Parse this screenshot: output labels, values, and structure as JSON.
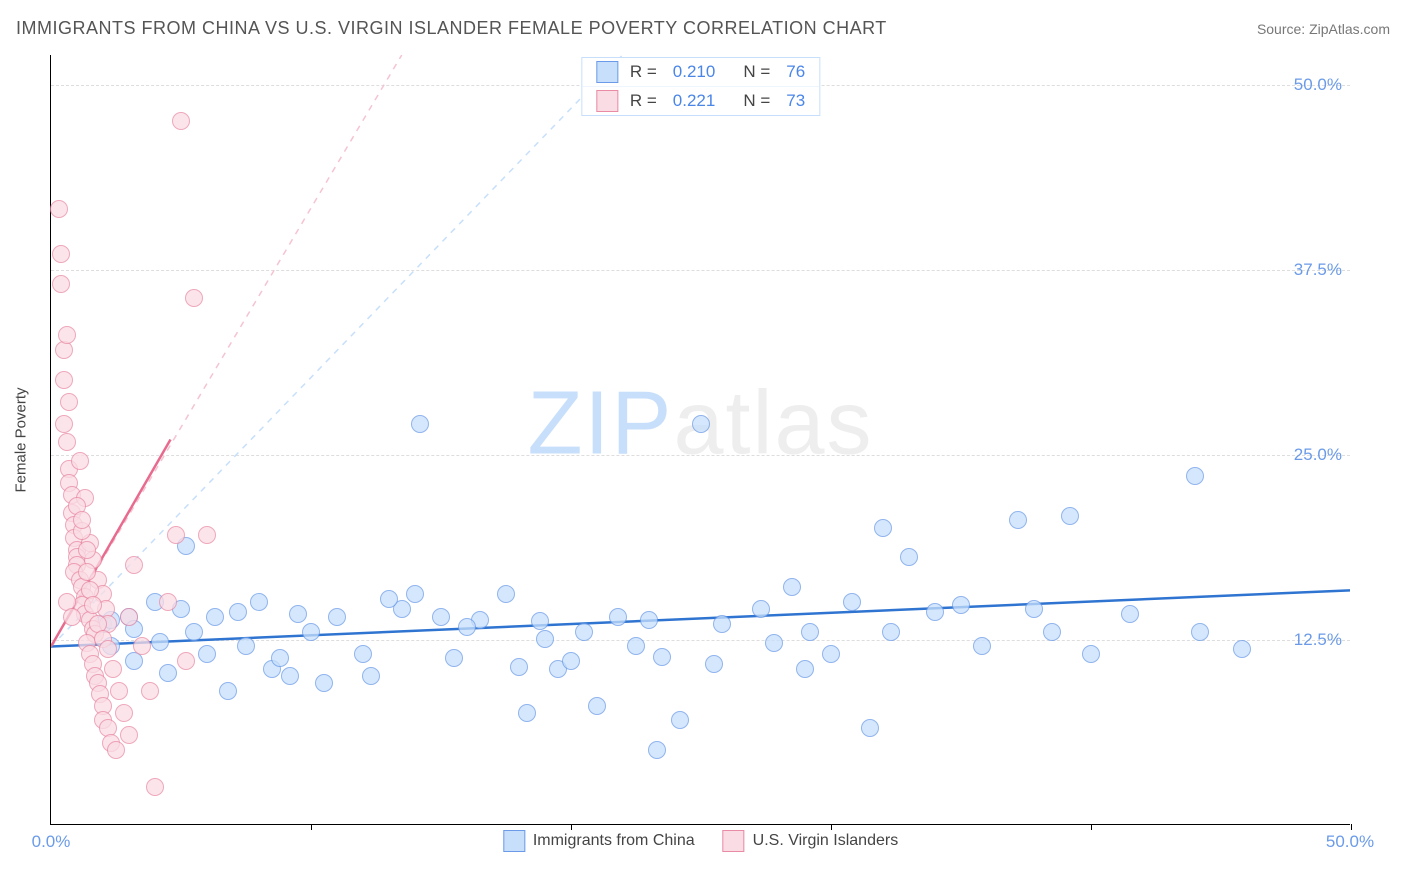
{
  "header": {
    "title": "IMMIGRANTS FROM CHINA VS U.S. VIRGIN ISLANDER FEMALE POVERTY CORRELATION CHART",
    "source_label": "Source:",
    "source_name": "ZipAtlas.com"
  },
  "watermark": {
    "part1": "ZIP",
    "part2": "atlas"
  },
  "chart": {
    "type": "scatter",
    "background_color": "#ffffff",
    "grid_color": "#dddddd",
    "axis_color": "#000000",
    "xlim": [
      0,
      50
    ],
    "ylim": [
      0,
      52
    ],
    "y_ticks": [
      12.5,
      25.0,
      37.5,
      50.0
    ],
    "y_tick_labels": [
      "12.5%",
      "25.0%",
      "37.5%",
      "50.0%"
    ],
    "x_origin_label": "0.0%",
    "x_max_label": "50.0%",
    "x_tick_positions": [
      10,
      20,
      30,
      40,
      50
    ],
    "y_axis_label": "Female Poverty",
    "y_tick_color": "#6b9be8",
    "x_tick_color": "#6b9be8",
    "marker_radius": 9,
    "marker_stroke_width": 1.2,
    "series": [
      {
        "name": "Immigrants from China",
        "fill_color": "#c7dffb",
        "stroke_color": "#6b9be8",
        "fill_opacity": 0.75,
        "trend": {
          "solid_color": "#2f74d0",
          "dash_color": "#c7dffb",
          "x1": 0,
          "y1": 12.0,
          "x2": 50,
          "y2": 15.8,
          "dash_x1": 0,
          "dash_y1": 12.0,
          "dash_x2": 22,
          "dash_y2": 52
        },
        "stats": {
          "R": "0.210",
          "N": "76"
        },
        "points": [
          [
            2.0,
            13.5
          ],
          [
            2.3,
            12.0
          ],
          [
            2.3,
            13.8
          ],
          [
            3.0,
            14.0
          ],
          [
            3.2,
            11.0
          ],
          [
            3.2,
            13.2
          ],
          [
            4.0,
            15.0
          ],
          [
            4.2,
            12.3
          ],
          [
            4.5,
            10.2
          ],
          [
            5.0,
            14.5
          ],
          [
            5.2,
            18.8
          ],
          [
            5.5,
            13.0
          ],
          [
            6.0,
            11.5
          ],
          [
            6.3,
            14.0
          ],
          [
            6.8,
            9.0
          ],
          [
            7.2,
            14.3
          ],
          [
            7.5,
            12.0
          ],
          [
            8.0,
            15.0
          ],
          [
            8.5,
            10.5
          ],
          [
            8.8,
            11.2
          ],
          [
            9.2,
            10.0
          ],
          [
            9.5,
            14.2
          ],
          [
            10.5,
            9.5
          ],
          [
            11.0,
            14.0
          ],
          [
            12.0,
            11.5
          ],
          [
            12.3,
            10.0
          ],
          [
            13.5,
            14.5
          ],
          [
            14.0,
            15.5
          ],
          [
            14.2,
            27.0
          ],
          [
            15.5,
            11.2
          ],
          [
            16.5,
            13.8
          ],
          [
            17.5,
            15.5
          ],
          [
            18.0,
            10.6
          ],
          [
            18.3,
            7.5
          ],
          [
            18.8,
            13.7
          ],
          [
            19.5,
            10.5
          ],
          [
            20.0,
            11.0
          ],
          [
            21.0,
            8.0
          ],
          [
            21.8,
            14.0
          ],
          [
            22.5,
            12.0
          ],
          [
            23.0,
            13.8
          ],
          [
            23.3,
            5.0
          ],
          [
            23.5,
            11.3
          ],
          [
            24.2,
            7.0
          ],
          [
            25.0,
            27.0
          ],
          [
            25.8,
            13.5
          ],
          [
            27.3,
            14.5
          ],
          [
            27.8,
            12.2
          ],
          [
            28.5,
            16.0
          ],
          [
            29.2,
            13.0
          ],
          [
            30.0,
            11.5
          ],
          [
            30.8,
            15.0
          ],
          [
            31.5,
            6.5
          ],
          [
            32.0,
            20.0
          ],
          [
            32.3,
            13.0
          ],
          [
            33.0,
            18.0
          ],
          [
            34.0,
            14.3
          ],
          [
            35.0,
            14.8
          ],
          [
            35.8,
            12.0
          ],
          [
            37.2,
            20.5
          ],
          [
            37.8,
            14.5
          ],
          [
            38.5,
            13.0
          ],
          [
            39.2,
            20.8
          ],
          [
            40.0,
            11.5
          ],
          [
            41.5,
            14.2
          ],
          [
            44.0,
            23.5
          ],
          [
            44.2,
            13.0
          ],
          [
            45.8,
            11.8
          ],
          [
            25.5,
            10.8
          ],
          [
            19.0,
            12.5
          ],
          [
            15.0,
            14.0
          ],
          [
            10.0,
            13.0
          ],
          [
            13.0,
            15.2
          ],
          [
            16.0,
            13.3
          ],
          [
            20.5,
            13.0
          ],
          [
            29.0,
            10.5
          ]
        ]
      },
      {
        "name": "U.S. Virgin Islanders",
        "fill_color": "#fadce4",
        "stroke_color": "#e98ba5",
        "fill_opacity": 0.75,
        "trend": {
          "solid_color": "#e86b8f",
          "dash_color": "#f5c3d1",
          "x1": 0,
          "y1": 12.0,
          "x2": 4.6,
          "y2": 26.0,
          "dash_x1": 0,
          "dash_y1": 12.0,
          "dash_x2": 13.5,
          "dash_y2": 52
        },
        "stats": {
          "R": "0.221",
          "N": "73"
        },
        "points": [
          [
            0.3,
            41.5
          ],
          [
            0.4,
            36.5
          ],
          [
            0.5,
            30.0
          ],
          [
            0.5,
            27.0
          ],
          [
            0.6,
            25.8
          ],
          [
            0.7,
            24.0
          ],
          [
            0.7,
            23.0
          ],
          [
            0.8,
            22.2
          ],
          [
            0.8,
            21.0
          ],
          [
            0.9,
            20.2
          ],
          [
            0.9,
            19.3
          ],
          [
            1.0,
            18.5
          ],
          [
            1.0,
            18.0
          ],
          [
            1.0,
            17.5
          ],
          [
            0.9,
            17.0
          ],
          [
            1.1,
            16.5
          ],
          [
            1.2,
            16.0
          ],
          [
            1.3,
            15.3
          ],
          [
            1.2,
            14.8
          ],
          [
            1.3,
            14.2
          ],
          [
            1.5,
            13.8
          ],
          [
            1.6,
            13.2
          ],
          [
            1.7,
            12.8
          ],
          [
            1.4,
            12.2
          ],
          [
            1.5,
            11.5
          ],
          [
            1.6,
            10.8
          ],
          [
            1.7,
            10.0
          ],
          [
            1.8,
            9.5
          ],
          [
            1.9,
            8.8
          ],
          [
            2.0,
            8.0
          ],
          [
            2.0,
            7.0
          ],
          [
            2.2,
            6.5
          ],
          [
            2.3,
            5.5
          ],
          [
            2.5,
            5.0
          ],
          [
            3.0,
            14.0
          ],
          [
            3.2,
            17.5
          ],
          [
            3.5,
            12.0
          ],
          [
            3.8,
            9.0
          ],
          [
            4.0,
            2.5
          ],
          [
            4.5,
            15.0
          ],
          [
            4.8,
            19.5
          ],
          [
            5.0,
            47.5
          ],
          [
            5.2,
            11.0
          ],
          [
            5.5,
            35.5
          ],
          [
            6.0,
            19.5
          ],
          [
            0.6,
            15.0
          ],
          [
            0.8,
            14.0
          ],
          [
            1.1,
            24.5
          ],
          [
            1.3,
            22.0
          ],
          [
            1.5,
            19.0
          ],
          [
            1.6,
            17.8
          ],
          [
            1.8,
            16.5
          ],
          [
            2.0,
            15.5
          ],
          [
            2.1,
            14.5
          ],
          [
            2.2,
            13.5
          ],
          [
            0.5,
            32.0
          ],
          [
            0.7,
            28.5
          ],
          [
            1.0,
            21.5
          ],
          [
            1.2,
            19.8
          ],
          [
            1.4,
            17.0
          ],
          [
            1.5,
            15.8
          ],
          [
            1.6,
            14.8
          ],
          [
            1.8,
            13.5
          ],
          [
            2.0,
            12.5
          ],
          [
            2.2,
            11.8
          ],
          [
            2.4,
            10.5
          ],
          [
            2.6,
            9.0
          ],
          [
            2.8,
            7.5
          ],
          [
            3.0,
            6.0
          ],
          [
            0.4,
            38.5
          ],
          [
            0.6,
            33.0
          ],
          [
            1.2,
            20.5
          ],
          [
            1.4,
            18.5
          ]
        ]
      }
    ]
  },
  "legend_bottom": [
    {
      "label": "Immigrants from China",
      "fill": "#c7dffb",
      "stroke": "#6b9be8"
    },
    {
      "label": "U.S. Virgin Islanders",
      "fill": "#fadce4",
      "stroke": "#e98ba5"
    }
  ]
}
